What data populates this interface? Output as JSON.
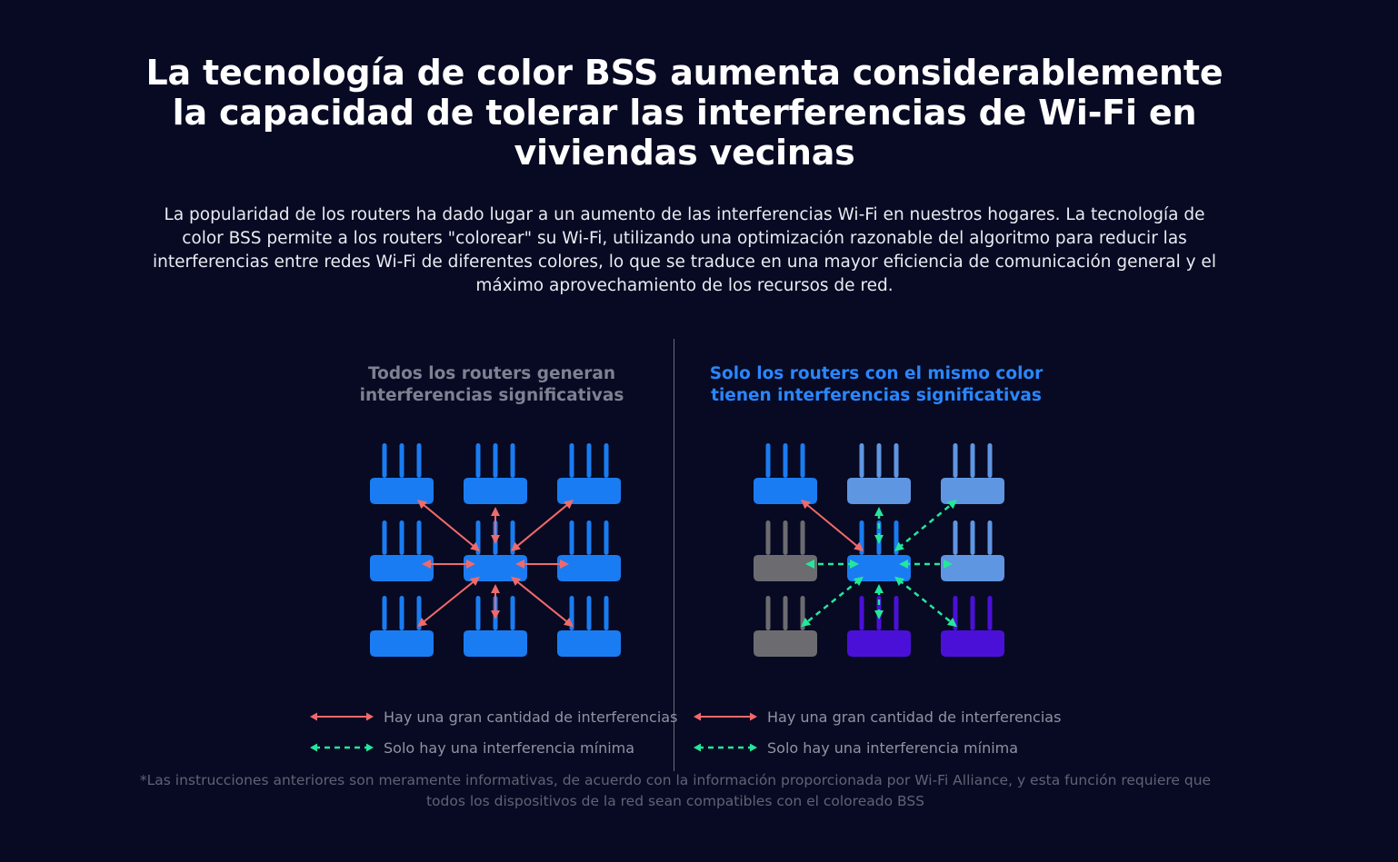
{
  "headline": "La tecnología de color BSS aumenta considerablemente la capacidad de tolerar las interferencias de Wi-Fi en viviendas vecinas",
  "intro": "La popularidad de los routers ha dado lugar a un aumento de las interferencias Wi-Fi en nuestros hogares. La tecnología de color BSS permite a los routers \"colorear\" su Wi-Fi, utilizando una optimización razonable del algoritmo para reducir las interferencias entre redes Wi-Fi de diferentes colores, lo que se traduce en una mayor eficiencia de comunicación general y el máximo aprovechamiento de los recursos de red.",
  "colors": {
    "background": "#070a22",
    "router_blue": "#1a7cf2",
    "router_light_blue": "#5f96e2",
    "router_gray": "#6c6c70",
    "router_purple": "#4b10d8",
    "high_interference": "#ef6a6a",
    "low_interference": "#23e79b",
    "accent_title": "#2a86ff"
  },
  "left_panel": {
    "title": "Todos los routers generan interferencias significativas",
    "routers": [
      "blue",
      "blue",
      "blue",
      "blue",
      "blue",
      "blue",
      "blue",
      "blue",
      "blue"
    ],
    "links": [
      {
        "to": 0,
        "kind": "high"
      },
      {
        "to": 1,
        "kind": "high"
      },
      {
        "to": 2,
        "kind": "high"
      },
      {
        "to": 3,
        "kind": "high"
      },
      {
        "to": 5,
        "kind": "high"
      },
      {
        "to": 6,
        "kind": "high"
      },
      {
        "to": 7,
        "kind": "high"
      },
      {
        "to": 8,
        "kind": "high"
      }
    ],
    "legend": {
      "high": "Hay una gran cantidad de interferencias",
      "low": "Solo hay una interferencia mínima"
    }
  },
  "right_panel": {
    "title": "Solo los routers con el mismo color tienen interferencias significativas",
    "routers": [
      "blue",
      "light_blue",
      "light_blue",
      "gray",
      "blue",
      "light_blue",
      "gray",
      "purple",
      "purple"
    ],
    "links": [
      {
        "to": 0,
        "kind": "high"
      },
      {
        "to": 1,
        "kind": "low"
      },
      {
        "to": 2,
        "kind": "low"
      },
      {
        "to": 3,
        "kind": "low"
      },
      {
        "to": 5,
        "kind": "low"
      },
      {
        "to": 6,
        "kind": "low"
      },
      {
        "to": 7,
        "kind": "low"
      },
      {
        "to": 8,
        "kind": "low"
      }
    ],
    "legend": {
      "high": "Hay una gran cantidad de interferencias",
      "low": "Solo hay una interferencia mínima"
    }
  },
  "footnote": "*Las instrucciones anteriores son meramente informativas, de acuerdo con la información proporcionada por Wi-Fi Alliance, y esta función requiere que todos los dispositivos de la red sean compatibles con el coloreado BSS"
}
